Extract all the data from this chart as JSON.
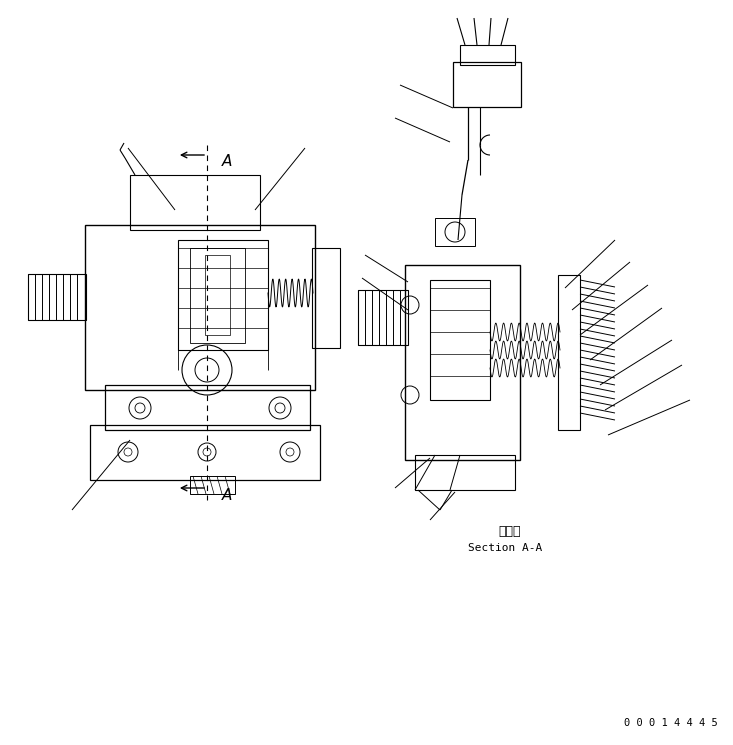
{
  "background_color": "#ffffff",
  "line_color": "#000000",
  "fig_width": 7.33,
  "fig_height": 7.45,
  "dpi": 100,
  "text_section_japanese": "断　面",
  "text_section_english": "Section A-A",
  "text_A": "A",
  "part_number": "0 0 0 1 4 4 4 5"
}
